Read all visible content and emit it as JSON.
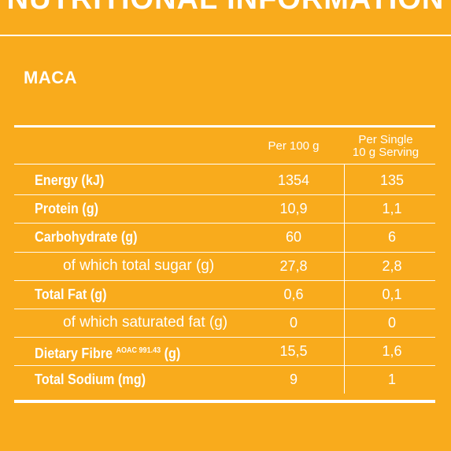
{
  "header": {
    "title": "NUTRITIONAL INFORMATION",
    "product": "MACA"
  },
  "table": {
    "columns": [
      "Per 100 g",
      "Per Single",
      "10 g Serving"
    ],
    "rows": [
      {
        "label": "Energy (kJ)",
        "per_100g": "1354",
        "per_serving": "135"
      },
      {
        "label": "Protein (g)",
        "per_100g": "10,9",
        "per_serving": "1,1"
      },
      {
        "label": "Carbohydrate (g)",
        "per_100g": "60",
        "per_serving": "6"
      },
      {
        "sub_label": "of which total sugar (g)",
        "per_100g": "27,8",
        "per_serving": "2,8"
      },
      {
        "label": "Total Fat (g)",
        "per_100g": "0,6",
        "per_serving": "0,1"
      },
      {
        "sub_label": "of which saturated fat (g)",
        "per_100g": "0",
        "per_serving": "0"
      },
      {
        "label": "Dietary Fibre",
        "superscript": "AOAC 991.43",
        "label_end": "(g)",
        "per_100g": "15,5",
        "per_serving": "1,6"
      },
      {
        "label": "Total Sodium (mg)",
        "per_100g": "9",
        "per_serving": "1"
      }
    ]
  }
}
